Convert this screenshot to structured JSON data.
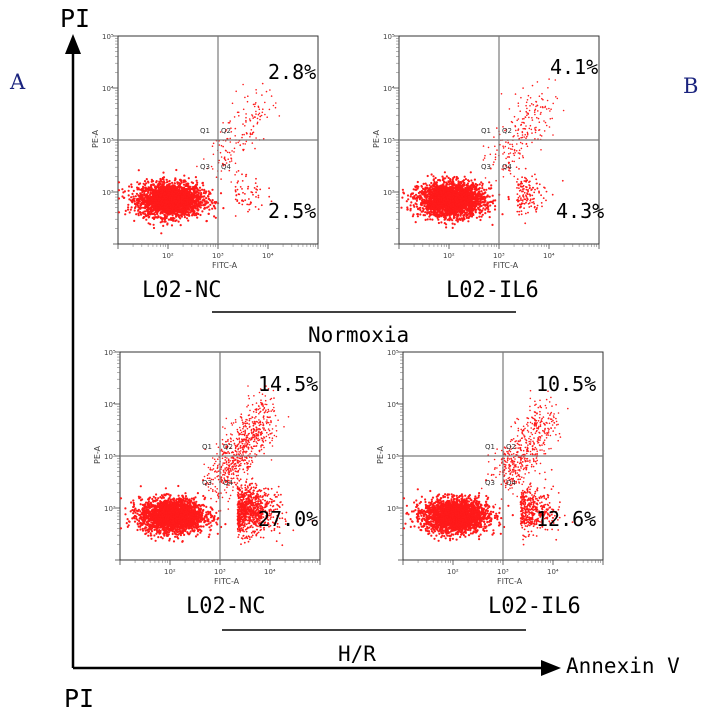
{
  "figure": {
    "panel_letters": [
      "A",
      "B"
    ],
    "y_axis_title": "PI",
    "x_axis_title": "Annexin V",
    "bottom_partial_label": "PI",
    "groups": [
      {
        "label": "Normoxia"
      },
      {
        "label": "H/R"
      }
    ],
    "colors": {
      "dots": "#ff1a1a",
      "axes": "#000000",
      "gates": "#7a7a7a",
      "letters": "#1a237e"
    }
  },
  "chart_data": [
    {
      "type": "scatter",
      "sample": "L02-NC",
      "condition": "Normoxia",
      "xlabel": "FITC-A",
      "ylabel": "PE-A",
      "x_scale": "log",
      "y_scale": "log",
      "xlim": [
        10,
        100000
      ],
      "ylim": [
        10,
        100000
      ],
      "gates": {
        "x": 1000,
        "y": 1000
      },
      "quadrants": [
        "Q1",
        "Q2",
        "Q3",
        "Q4"
      ],
      "percentages": {
        "upper_right": "2.8%",
        "lower_right": "2.5%"
      }
    },
    {
      "type": "scatter",
      "sample": "L02-IL6",
      "condition": "Normoxia",
      "xlabel": "FITC-A",
      "ylabel": "PE-A",
      "x_scale": "log",
      "y_scale": "log",
      "xlim": [
        10,
        100000
      ],
      "ylim": [
        10,
        100000
      ],
      "gates": {
        "x": 1000,
        "y": 1000
      },
      "quadrants": [
        "Q1",
        "Q2",
        "Q3",
        "Q4"
      ],
      "percentages": {
        "upper_right": "4.1%",
        "lower_right": "4.3%"
      }
    },
    {
      "type": "scatter",
      "sample": "L02-NC",
      "condition": "H/R",
      "xlabel": "FITC-A",
      "ylabel": "PE-A",
      "x_scale": "log",
      "y_scale": "log",
      "xlim": [
        10,
        100000
      ],
      "ylim": [
        10,
        100000
      ],
      "gates": {
        "x": 1000,
        "y": 1000
      },
      "quadrants": [
        "Q1",
        "Q2",
        "Q3",
        "Q4"
      ],
      "percentages": {
        "upper_right": "14.5%",
        "lower_right": "27.0%"
      }
    },
    {
      "type": "scatter",
      "sample": "L02-IL6",
      "condition": "H/R",
      "xlabel": "FITC-A",
      "ylabel": "PE-A",
      "x_scale": "log",
      "y_scale": "log",
      "xlim": [
        10,
        100000
      ],
      "ylim": [
        10,
        100000
      ],
      "gates": {
        "x": 1000,
        "y": 1000
      },
      "quadrants": [
        "Q1",
        "Q2",
        "Q3",
        "Q4"
      ],
      "percentages": {
        "upper_right": "10.5%",
        "lower_right": "12.6%"
      }
    }
  ]
}
